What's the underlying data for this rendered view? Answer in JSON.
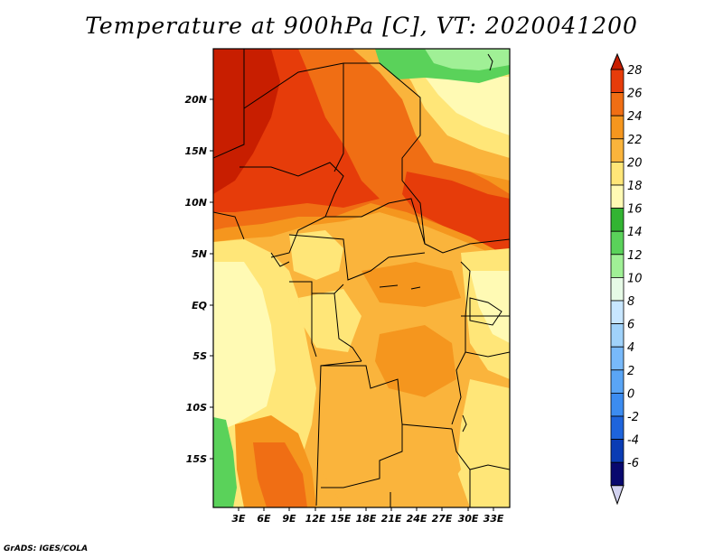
{
  "title": "Temperature at 900hPa [C], VT: 2020041200",
  "credit": "GrADS: IGES/COLA",
  "map": {
    "variable": "temperature_900hPa",
    "units": "C",
    "lat_labels": [
      "20N",
      "15N",
      "10N",
      "5N",
      "EQ",
      "5S",
      "10S",
      "15S"
    ],
    "lon_labels": [
      "3E",
      "6E",
      "9E",
      "12E",
      "15E",
      "18E",
      "21E",
      "24E",
      "27E",
      "30E",
      "33E"
    ],
    "colors": {
      "c_lt_neg6": "#b4b4f0",
      "c_neg6_neg4": "#08086e",
      "c_neg4_neg2": "#0a3cb4",
      "c_neg2_0": "#1e64dc",
      "c_0_2": "#3c8cf0",
      "c_2_4": "#5aa5f5",
      "c_4_6": "#78b9fa",
      "c_6_8": "#a0d2fa",
      "c_8_10": "#c8e6ff",
      "c_10_12": "#e6fae6",
      "c_12_14": "#a0f096",
      "c_14_16": "#5ad25a",
      "c_16_18": "#32b432",
      "c_18_20": "#fffab4",
      "c_20_22": "#ffe678",
      "c_22_24": "#fab43c",
      "c_24_26": "#f5961e",
      "c_26_28": "#f06e14",
      "c_gt_28": "#e63c0a",
      "c_extreme": "#c81e00"
    }
  },
  "colorbar": {
    "labels": [
      "28",
      "26",
      "24",
      "22",
      "20",
      "18",
      "16",
      "14",
      "12",
      "10",
      "8",
      "6",
      "4",
      "2",
      "0",
      "-2",
      "-4",
      "-6"
    ],
    "colors": [
      "#e63c0a",
      "#f06e14",
      "#f5961e",
      "#fab43c",
      "#ffe678",
      "#fffab4",
      "#32b432",
      "#5ad25a",
      "#a0f096",
      "#e6fae6",
      "#c8e6ff",
      "#a0d2fa",
      "#78b9fa",
      "#5aa5f5",
      "#3c8cf0",
      "#1e64dc",
      "#0a3cb4",
      "#08086e"
    ],
    "top_arrow_color": "#c81e00",
    "bottom_arrow_color": "#d2d2f0"
  }
}
